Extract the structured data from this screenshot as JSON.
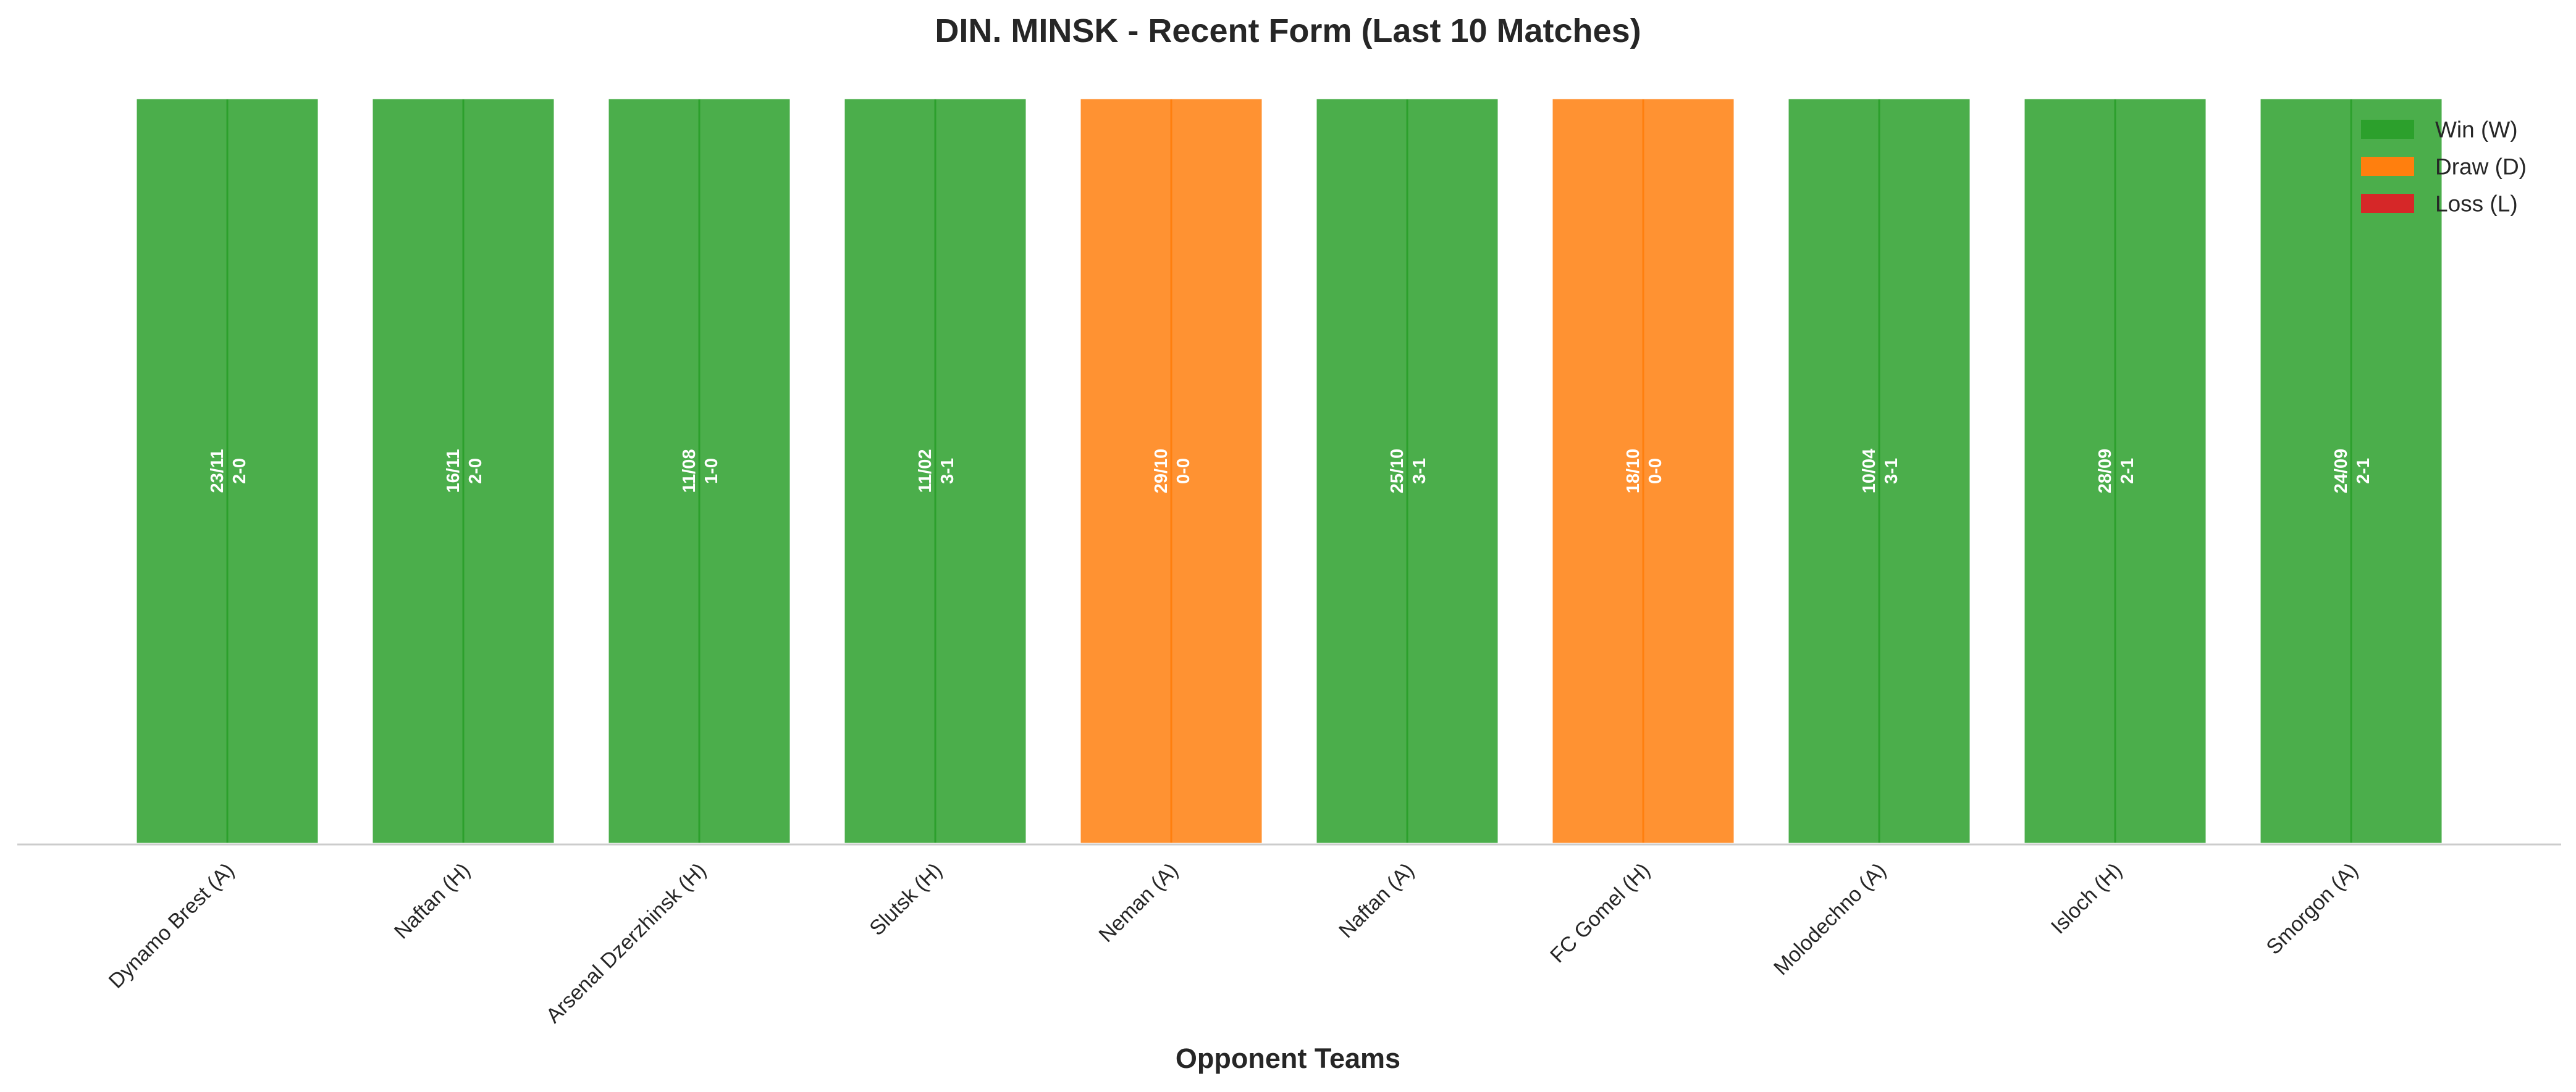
{
  "chart_data": {
    "type": "bar",
    "title": "DIN. MINSK - Recent Form (Last 10 Matches)",
    "xlabel": "Opponent Teams",
    "ylabel": "",
    "grid": false,
    "legend_position": "top-right",
    "categories": [
      "Dynamo Brest (A)",
      "Naftan (H)",
      "Arsenal Dzerzhinsk (H)",
      "Slutsk (H)",
      "Neman (A)",
      "Naftan (A)",
      "FC Gomel (H)",
      "Molodechno (A)",
      "Isloch (H)",
      "Smorgon (A)"
    ],
    "values": [
      1,
      1,
      1,
      1,
      1,
      1,
      1,
      1,
      1,
      1
    ],
    "results": [
      "W",
      "W",
      "W",
      "W",
      "D",
      "W",
      "D",
      "W",
      "W",
      "W"
    ],
    "dates": [
      "23/11",
      "16/11",
      "11/08",
      "11/02",
      "29/10",
      "25/10",
      "18/10",
      "10/04",
      "28/09",
      "24/09"
    ],
    "scores": [
      "2-0",
      "2-0",
      "1-0",
      "3-1",
      "0-0",
      "3-1",
      "0-0",
      "3-1",
      "2-1",
      "2-1"
    ],
    "ylim": [
      0,
      1
    ],
    "legend": [
      {
        "key": "W",
        "label": "Win (W)",
        "color": "#2ca02c"
      },
      {
        "key": "D",
        "label": "Draw (D)",
        "color": "#ff7f0e"
      },
      {
        "key": "L",
        "label": "Loss (L)",
        "color": "#d62728"
      }
    ]
  }
}
